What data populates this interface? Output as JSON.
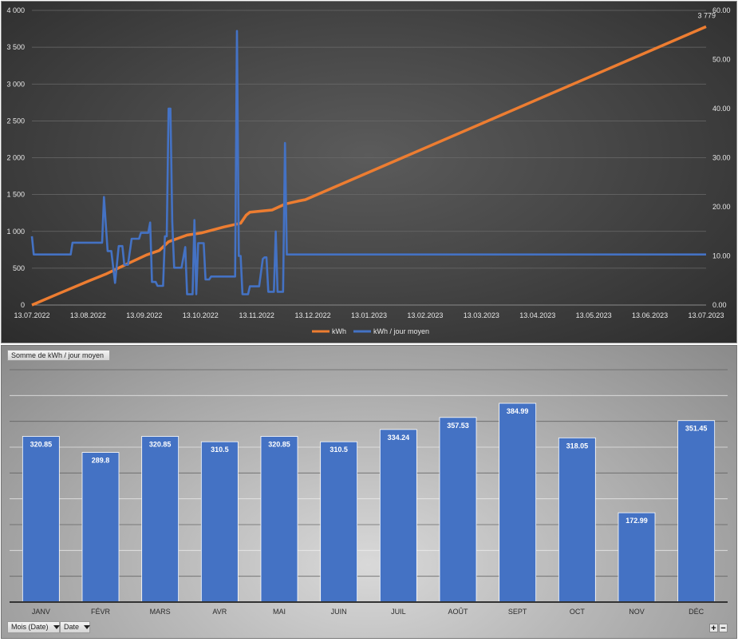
{
  "chart_data": [
    {
      "type": "line",
      "title": "",
      "x_ticks": [
        "13.07.2022",
        "13.08.2022",
        "13.09.2022",
        "13.10.2022",
        "13.11.2022",
        "13.12.2022",
        "13.01.2023",
        "13.02.2023",
        "13.03.2023",
        "13.04.2023",
        "13.05.2023",
        "13.06.2023",
        "13.07.2023"
      ],
      "y_left_ticks": [
        "0",
        "500",
        "1 000",
        "1 500",
        "2 000",
        "2 500",
        "3 000",
        "3 500",
        "4 000"
      ],
      "y_left_range": [
        0,
        4000
      ],
      "y_right_ticks": [
        "0.00",
        "10.00",
        "20.00",
        "30.00",
        "40.00",
        "50.00",
        "60.00"
      ],
      "y_right_range": [
        0,
        60
      ],
      "end_label": "3 779",
      "grid": true,
      "legend_position": "bottom",
      "series": [
        {
          "name": "kWh",
          "axis": "left",
          "color": "#ed7d31",
          "points": [
            [
              "2022-07-13",
              0
            ],
            [
              "2022-07-27",
              150
            ],
            [
              "2022-08-13",
              330
            ],
            [
              "2022-08-22",
              420
            ],
            [
              "2022-09-01",
              540
            ],
            [
              "2022-09-13",
              680
            ],
            [
              "2022-09-20",
              740
            ],
            [
              "2022-09-25",
              860
            ],
            [
              "2022-10-05",
              950
            ],
            [
              "2022-10-13",
              980
            ],
            [
              "2022-10-25",
              1060
            ],
            [
              "2022-11-03",
              1110
            ],
            [
              "2022-11-06",
              1220
            ],
            [
              "2022-11-08",
              1260
            ],
            [
              "2022-11-20",
              1290
            ],
            [
              "2022-11-27",
              1370
            ],
            [
              "2022-12-04",
              1410
            ],
            [
              "2022-12-08",
              1430
            ],
            [
              "2023-07-13",
              3779
            ]
          ]
        },
        {
          "name": "kWh / jour moyen",
          "axis": "right",
          "color": "#4472c4",
          "points": [
            [
              "2022-07-13",
              14
            ],
            [
              "2022-07-14",
              10.3
            ],
            [
              "2022-08-03",
              10.3
            ],
            [
              "2022-08-04",
              12.7
            ],
            [
              "2022-08-20",
              12.7
            ],
            [
              "2022-08-21",
              22
            ],
            [
              "2022-08-23",
              11
            ],
            [
              "2022-08-25",
              11
            ],
            [
              "2022-08-27",
              4.5
            ],
            [
              "2022-08-29",
              12
            ],
            [
              "2022-08-31",
              12
            ],
            [
              "2022-09-01",
              8.2
            ],
            [
              "2022-09-03",
              8.2
            ],
            [
              "2022-09-05",
              13.5
            ],
            [
              "2022-09-09",
              13.5
            ],
            [
              "2022-09-10",
              14.7
            ],
            [
              "2022-09-14",
              14.7
            ],
            [
              "2022-09-15",
              16.8
            ],
            [
              "2022-09-16",
              4.7
            ],
            [
              "2022-09-18",
              4.7
            ],
            [
              "2022-09-19",
              3.9
            ],
            [
              "2022-09-22",
              3.9
            ],
            [
              "2022-09-23",
              14
            ],
            [
              "2022-09-24",
              14
            ],
            [
              "2022-09-25",
              40
            ],
            [
              "2022-09-26",
              40
            ],
            [
              "2022-09-27",
              17
            ],
            [
              "2022-09-28",
              7.6
            ],
            [
              "2022-10-02",
              7.6
            ],
            [
              "2022-10-04",
              11.8
            ],
            [
              "2022-10-05",
              2.2
            ],
            [
              "2022-10-08",
              2.2
            ],
            [
              "2022-10-09",
              17.3
            ],
            [
              "2022-10-10",
              2.2
            ],
            [
              "2022-10-11",
              12.6
            ],
            [
              "2022-10-14",
              12.6
            ],
            [
              "2022-10-15",
              5.2
            ],
            [
              "2022-10-17",
              5.2
            ],
            [
              "2022-10-18",
              5.8
            ],
            [
              "2022-10-25",
              5.8
            ],
            [
              "2022-10-31",
              5.8
            ],
            [
              "2022-11-01",
              55.8
            ],
            [
              "2022-11-02",
              10
            ],
            [
              "2022-11-03",
              10
            ],
            [
              "2022-11-04",
              2.2
            ],
            [
              "2022-11-07",
              2.2
            ],
            [
              "2022-11-08",
              3.8
            ],
            [
              "2022-11-13",
              3.8
            ],
            [
              "2022-11-15",
              9.4
            ],
            [
              "2022-11-16",
              9.7
            ],
            [
              "2022-11-17",
              9.7
            ],
            [
              "2022-11-18",
              2.7
            ],
            [
              "2022-11-21",
              2.7
            ],
            [
              "2022-11-22",
              15
            ],
            [
              "2022-11-23",
              2.7
            ],
            [
              "2022-11-26",
              2.7
            ],
            [
              "2022-11-27",
              33
            ],
            [
              "2022-11-28",
              10.3
            ],
            [
              "2023-07-13",
              10.3
            ]
          ]
        }
      ]
    },
    {
      "type": "bar",
      "title": "",
      "field_button": "Somme de kWh / jour moyen",
      "categories": [
        "JANV",
        "FÉVR",
        "MARS",
        "AVR",
        "MAI",
        "JUIN",
        "JUIL",
        "AOÛT",
        "SEPT",
        "OCT",
        "NOV",
        "DÉC"
      ],
      "values": [
        320.85,
        289.8,
        320.85,
        310.5,
        320.85,
        310.5,
        334.24,
        357.53,
        384.99,
        318.05,
        172.99,
        351.45
      ],
      "labels": [
        "320.85",
        "289.8",
        "320.85",
        "310.5",
        "320.85",
        "310.5",
        "334.24",
        "357.53",
        "384.99",
        "318.05",
        "172.99",
        "351.45"
      ],
      "ylim": [
        0,
        450
      ],
      "grid": true,
      "color": "#4472c4",
      "axis_buttons": [
        "Mois (Date)",
        "Date"
      ]
    }
  ]
}
